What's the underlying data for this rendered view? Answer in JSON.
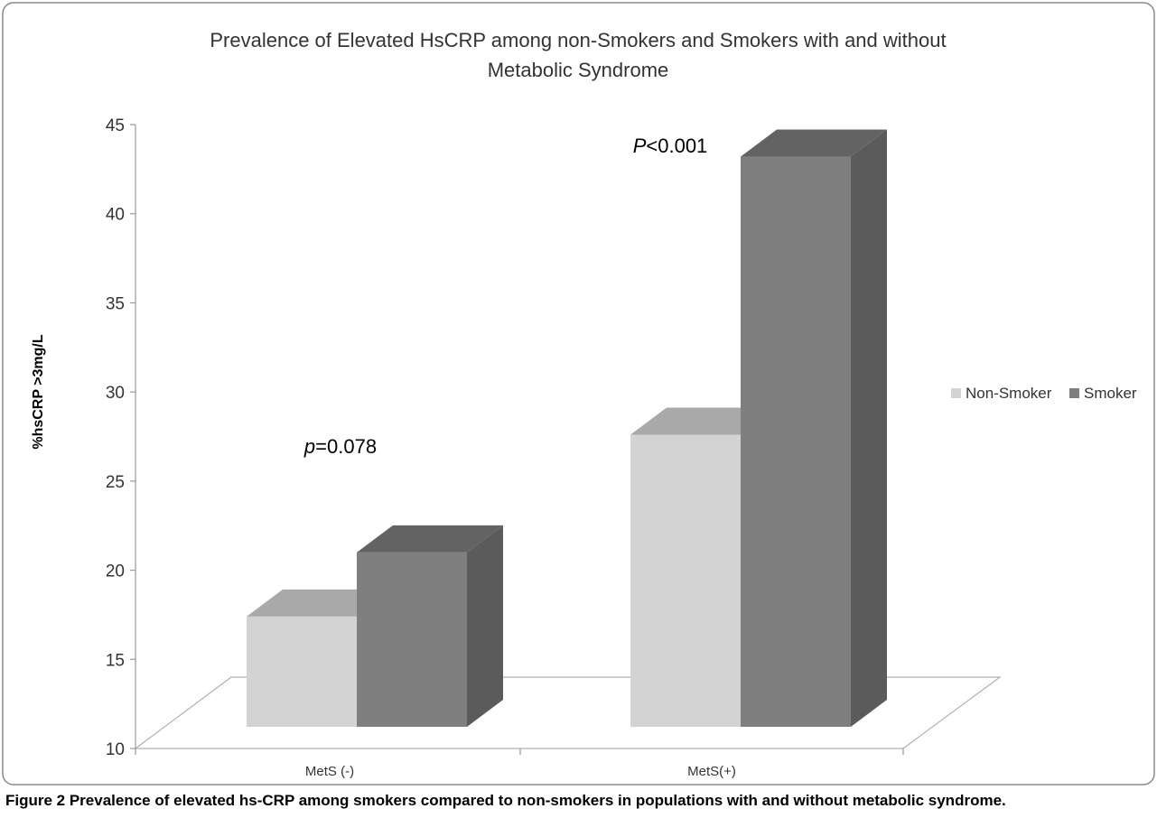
{
  "chart_data": {
    "type": "bar",
    "title_line1": "Prevalence of Elevated HsCRP among non-Smokers and Smokers with and without",
    "title_line2": "Metabolic Syndrome",
    "xlabel": "",
    "ylabel": "%hsCRP >3mg/L",
    "ylim": [
      10,
      45
    ],
    "yticks": [
      "10",
      "15",
      "20",
      "25",
      "30",
      "35",
      "40",
      "45"
    ],
    "categories": [
      "MetS (-)",
      "MetS(+)"
    ],
    "series": [
      {
        "name": "Non-Smoker",
        "values": [
          17.4,
          27.6
        ],
        "color": "#d3d3d3"
      },
      {
        "name": "Smoker",
        "values": [
          21.0,
          43.2
        ],
        "color": "#7f7f7f"
      }
    ],
    "annotations": [
      {
        "prefix": "p",
        "text": "=0.078",
        "category": "MetS (-)"
      },
      {
        "prefix": "P",
        "text": "<0.001",
        "category": "MetS(+)"
      }
    ],
    "legend_position": "right",
    "grid": false,
    "three_d": true
  },
  "caption": {
    "label": "Figure 2",
    "text": " Prevalence of elevated hs-CRP among smokers compared to non-smokers in populations with and without metabolic syndrome."
  }
}
